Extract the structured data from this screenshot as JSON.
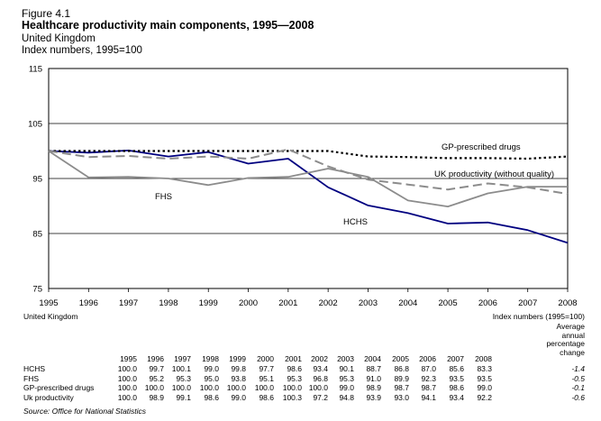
{
  "header": {
    "figure_label": "Figure 4.1",
    "title": "Healthcare productivity main components, 1995—2008",
    "subtitle1": "United Kingdom",
    "subtitle2": "Index  numbers, 1995=100"
  },
  "chart_data": {
    "type": "line",
    "x": [
      1995,
      1996,
      1997,
      1998,
      1999,
      2000,
      2001,
      2002,
      2003,
      2004,
      2005,
      2006,
      2007,
      2008
    ],
    "ylim": [
      75,
      115
    ],
    "yticks": [
      75,
      85,
      95,
      105,
      115
    ],
    "grid": true,
    "series": [
      {
        "name": "HCHS",
        "color": "#000080",
        "style": "solid",
        "values": [
          100.0,
          99.7,
          100.1,
          99.0,
          99.8,
          97.7,
          98.6,
          93.4,
          90.1,
          88.7,
          86.8,
          87.0,
          85.6,
          83.3
        ]
      },
      {
        "name": "FHS",
        "color": "#8c8c8c",
        "style": "solid",
        "values": [
          100.0,
          95.2,
          95.3,
          95.0,
          93.8,
          95.1,
          95.3,
          96.8,
          95.3,
          91.0,
          89.9,
          92.3,
          93.5,
          93.5
        ]
      },
      {
        "name": "GP-prescribed drugs",
        "color": "#000000",
        "style": "dotted",
        "values": [
          100.0,
          100.0,
          100.0,
          100.0,
          100.0,
          100.0,
          100.0,
          100.0,
          99.0,
          98.9,
          98.7,
          98.7,
          98.6,
          99.0
        ]
      },
      {
        "name": "UK productivity (without quality)",
        "color": "#8c8c8c",
        "style": "dashed",
        "values": [
          100.0,
          98.9,
          99.1,
          98.6,
          99.0,
          98.6,
          100.3,
          97.2,
          94.8,
          93.9,
          93.0,
          94.1,
          93.4,
          92.2
        ]
      }
    ],
    "annotations": [
      {
        "series": "GP-prescribed drugs",
        "text": "GP-prescribed drugs"
      },
      {
        "series": "UK productivity (without quality)",
        "text": "UK productivity (without quality)"
      },
      {
        "series": "FHS",
        "text": "FHS"
      },
      {
        "series": "HCHS",
        "text": "HCHS"
      }
    ]
  },
  "table": {
    "left_caption": "United Kingdom",
    "right_caption": "Index numbers (1995=100)",
    "avg_header": [
      "Average",
      "annual",
      "percentage",
      "change"
    ],
    "years": [
      "1995",
      "1996",
      "1997",
      "1998",
      "1999",
      "2000",
      "2001",
      "2002",
      "2003",
      "2004",
      "2005",
      "2006",
      "2007",
      "2008"
    ],
    "rows": [
      {
        "label": "HCHS",
        "values": [
          "100.0",
          "99.7",
          "100.1",
          "99.0",
          "99.8",
          "97.7",
          "98.6",
          "93.4",
          "90.1",
          "88.7",
          "86.8",
          "87.0",
          "85.6",
          "83.3"
        ],
        "avg": "-1.4"
      },
      {
        "label": "FHS",
        "values": [
          "100.0",
          "95.2",
          "95.3",
          "95.0",
          "93.8",
          "95.1",
          "95.3",
          "96.8",
          "95.3",
          "91.0",
          "89.9",
          "92.3",
          "93.5",
          "93.5"
        ],
        "avg": "-0.5"
      },
      {
        "label": "GP-prescribed drugs",
        "values": [
          "100.0",
          "100.0",
          "100.0",
          "100.0",
          "100.0",
          "100.0",
          "100.0",
          "100.0",
          "99.0",
          "98.9",
          "98.7",
          "98.7",
          "98.6",
          "99.0"
        ],
        "avg": "-0.1"
      },
      {
        "label": "Uk productivity",
        "values": [
          "100.0",
          "98.9",
          "99.1",
          "98.6",
          "99.0",
          "98.6",
          "100.3",
          "97.2",
          "94.8",
          "93.9",
          "93.0",
          "94.1",
          "93.4",
          "92.2"
        ],
        "avg": "-0.6"
      }
    ],
    "source": "Source: Office for National Statistics"
  }
}
